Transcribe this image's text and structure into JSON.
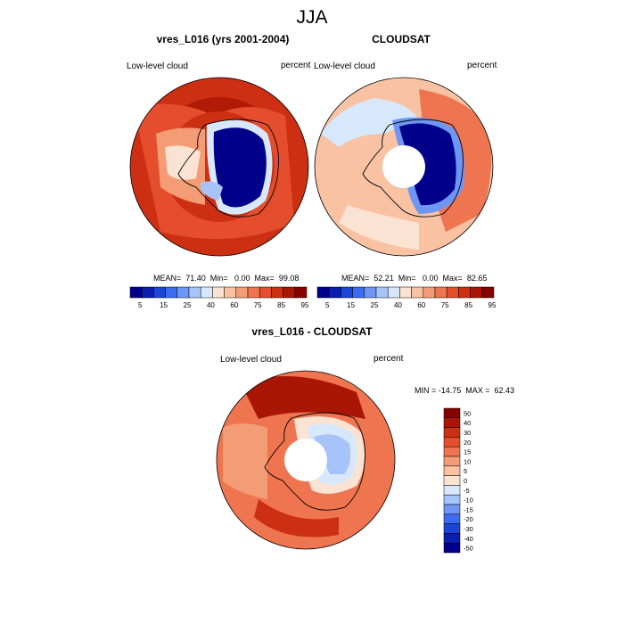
{
  "header": {
    "title": "JJA"
  },
  "panels": [
    {
      "title": "vres_L016 (yrs 2001-2004)",
      "variable": "Low-level cloud",
      "units": "percent",
      "stats": "MEAN=  71.40  Min=   0.00  Max=  99.08"
    },
    {
      "title": "CLOUDSAT",
      "variable": "Low-level cloud",
      "units": "percent",
      "stats": "MEAN=  52.21  Min=   0.00  Max=  82.65"
    },
    {
      "title": "vres_L016 - CLOUDSAT",
      "variable": "Low-level cloud",
      "units": "percent",
      "stats": "MIN = -14.75  MAX =  62.43"
    }
  ],
  "colors": {
    "scale": [
      "#00008b",
      "#0a1fb0",
      "#1a45d6",
      "#3b6cf0",
      "#6e96f5",
      "#a6c3fa",
      "#d8e8fc",
      "#fbe3d3",
      "#f8c2a3",
      "#f49c75",
      "#ef7450",
      "#e54e2c",
      "#cc2f12",
      "#aa1605",
      "#880000"
    ],
    "coast": "#000000"
  },
  "chart_data": [
    {
      "type": "heatmap",
      "title": "vres_L016 (yrs 2001-2004)",
      "projection": "south-polar stereographic",
      "variable": "Low-level cloud",
      "units": "percent",
      "mean": 71.4,
      "min": 0.0,
      "max": 99.08,
      "colorbar": {
        "orientation": "horizontal",
        "levels": [
          5,
          10,
          15,
          20,
          25,
          30,
          40,
          50,
          60,
          70,
          75,
          80,
          85,
          90,
          95
        ],
        "tick_labels": [
          "5",
          "15",
          "25",
          "40",
          "60",
          "75",
          "85",
          "95"
        ]
      }
    },
    {
      "type": "heatmap",
      "title": "CLOUDSAT",
      "projection": "south-polar stereographic",
      "variable": "Low-level cloud",
      "units": "percent",
      "mean": 52.21,
      "min": 0.0,
      "max": 82.65,
      "colorbar": {
        "orientation": "horizontal",
        "levels": [
          5,
          10,
          15,
          20,
          25,
          30,
          40,
          50,
          60,
          70,
          75,
          80,
          85,
          90,
          95
        ],
        "tick_labels": [
          "5",
          "15",
          "25",
          "40",
          "60",
          "75",
          "85",
          "95"
        ]
      }
    },
    {
      "type": "heatmap",
      "title": "vres_L016 - CLOUDSAT",
      "projection": "south-polar stereographic",
      "variable": "Low-level cloud",
      "units": "percent",
      "min": -14.75,
      "max": 62.43,
      "colorbar": {
        "orientation": "vertical",
        "levels": [
          50,
          40,
          30,
          20,
          15,
          10,
          5,
          0,
          -5,
          -10,
          -15,
          -20,
          -30,
          -40,
          -50
        ],
        "tick_labels": [
          "50",
          "40",
          "30",
          "20",
          "15",
          "10",
          "5",
          "0",
          "-5",
          "-10",
          "-15",
          "-20",
          "-30",
          "-40",
          "-50"
        ]
      }
    }
  ]
}
